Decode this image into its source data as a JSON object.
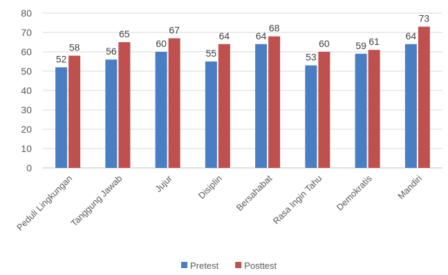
{
  "chart_data": {
    "type": "bar",
    "title": "",
    "xlabel": "",
    "ylabel": "",
    "ylim": [
      0,
      80
    ],
    "yticks": [
      0,
      10,
      20,
      30,
      40,
      50,
      60,
      70,
      80
    ],
    "grid": true,
    "legend_position": "bottom",
    "categories": [
      "Peduli Lingkungan",
      "Tanggung Jawab",
      "Jujur",
      "Disiplin",
      "Bersahabat",
      "Rasa Ingin Tahu",
      "Demokratis",
      "Mandiri"
    ],
    "series": [
      {
        "name": "Pretest",
        "color": "#4a7ec2",
        "values": [
          52,
          56,
          60,
          55,
          64,
          53,
          59,
          64
        ]
      },
      {
        "name": "Posttest",
        "color": "#c0504d",
        "values": [
          58,
          65,
          67,
          64,
          68,
          60,
          61,
          73
        ]
      }
    ]
  }
}
